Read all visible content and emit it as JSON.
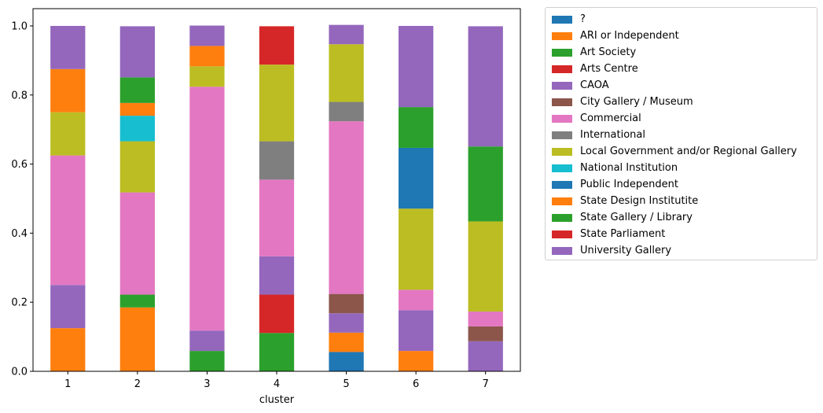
{
  "chart_data": {
    "type": "bar",
    "stacked": true,
    "xlabel": "cluster",
    "ylabel": "",
    "ylim": [
      0,
      1.05
    ],
    "yticks": [
      0.0,
      0.2,
      0.4,
      0.6,
      0.8,
      1.0
    ],
    "ytick_labels": [
      "0.0",
      "0.2",
      "0.4",
      "0.6",
      "0.8",
      "1.0"
    ],
    "legend_position": "outside-right",
    "categories": [
      "1",
      "2",
      "3",
      "4",
      "5",
      "6",
      "7"
    ],
    "series": [
      {
        "name": "?",
        "color": "#1f77b4",
        "values": [
          0,
          0,
          0,
          0,
          0.056,
          0,
          0
        ]
      },
      {
        "name": "ARI or Independent",
        "color": "#ff7f0e",
        "values": [
          0.125,
          0.185,
          0,
          0,
          0.056,
          0.059,
          0
        ]
      },
      {
        "name": "Art Society",
        "color": "#2ca02c",
        "values": [
          0,
          0.037,
          0.059,
          0.111,
          0,
          0,
          0
        ]
      },
      {
        "name": "Arts Centre",
        "color": "#d62728",
        "values": [
          0,
          0,
          0,
          0.111,
          0,
          0,
          0
        ]
      },
      {
        "name": "CAOA",
        "color": "#9467bd",
        "values": [
          0.125,
          0,
          0.059,
          0.111,
          0.056,
          0.118,
          0.087
        ]
      },
      {
        "name": "City Gallery / Museum",
        "color": "#8c564b",
        "values": [
          0,
          0,
          0,
          0,
          0.056,
          0,
          0.043
        ]
      },
      {
        "name": "Commercial",
        "color": "#e377c2",
        "values": [
          0.375,
          0.296,
          0.706,
          0.222,
          0.5,
          0.059,
          0.043
        ]
      },
      {
        "name": "International",
        "color": "#7f7f7f",
        "values": [
          0,
          0,
          0,
          0.111,
          0.056,
          0,
          0
        ]
      },
      {
        "name": "Local Government and/or Regional Gallery",
        "color": "#bcbd22",
        "values": [
          0.125,
          0.148,
          0.059,
          0.222,
          0.167,
          0.235,
          0.261
        ]
      },
      {
        "name": "National Institution",
        "color": "#17becf",
        "values": [
          0,
          0.074,
          0,
          0,
          0,
          0,
          0
        ]
      },
      {
        "name": "Public Independent",
        "color": "#1f77b4",
        "values": [
          0,
          0,
          0,
          0,
          0,
          0.176,
          0
        ]
      },
      {
        "name": "State Design Institutite",
        "color": "#ff7f0e",
        "values": [
          0.125,
          0.037,
          0.059,
          0,
          0,
          0,
          0
        ]
      },
      {
        "name": "State Gallery / Library",
        "color": "#2ca02c",
        "values": [
          0,
          0.074,
          0,
          0,
          0,
          0.118,
          0.217
        ]
      },
      {
        "name": "State Parliament",
        "color": "#d62728",
        "values": [
          0,
          0,
          0,
          0.111,
          0,
          0,
          0
        ]
      },
      {
        "name": "University Gallery",
        "color": "#9467bd",
        "values": [
          0.125,
          0.148,
          0.059,
          0,
          0.056,
          0.235,
          0.348
        ]
      }
    ]
  }
}
